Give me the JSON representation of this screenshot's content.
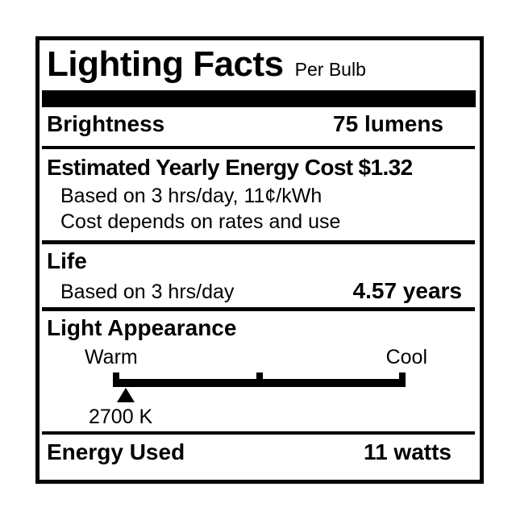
{
  "label": {
    "title": "Lighting Facts",
    "subtitle": "Per Bulb",
    "brightness": {
      "label": "Brightness",
      "value": "75 lumens"
    },
    "energy_cost": {
      "label": "Estimated Yearly Energy Cost",
      "value": "$1.32",
      "note_basis": "Based on 3 hrs/day, 11¢/kWh",
      "note_disclaimer": "Cost depends on rates and use"
    },
    "life": {
      "label": "Life",
      "basis": "Based on 3 hrs/day",
      "value": "4.57 years"
    },
    "light_appearance": {
      "label": "Light Appearance",
      "warm_label": "Warm",
      "cool_label": "Cool",
      "marker_temperature": "2700 K"
    },
    "energy_used": {
      "label": "Energy Used",
      "value": "11 watts"
    }
  },
  "colors": {
    "ink": "#000000",
    "background": "#ffffff"
  }
}
